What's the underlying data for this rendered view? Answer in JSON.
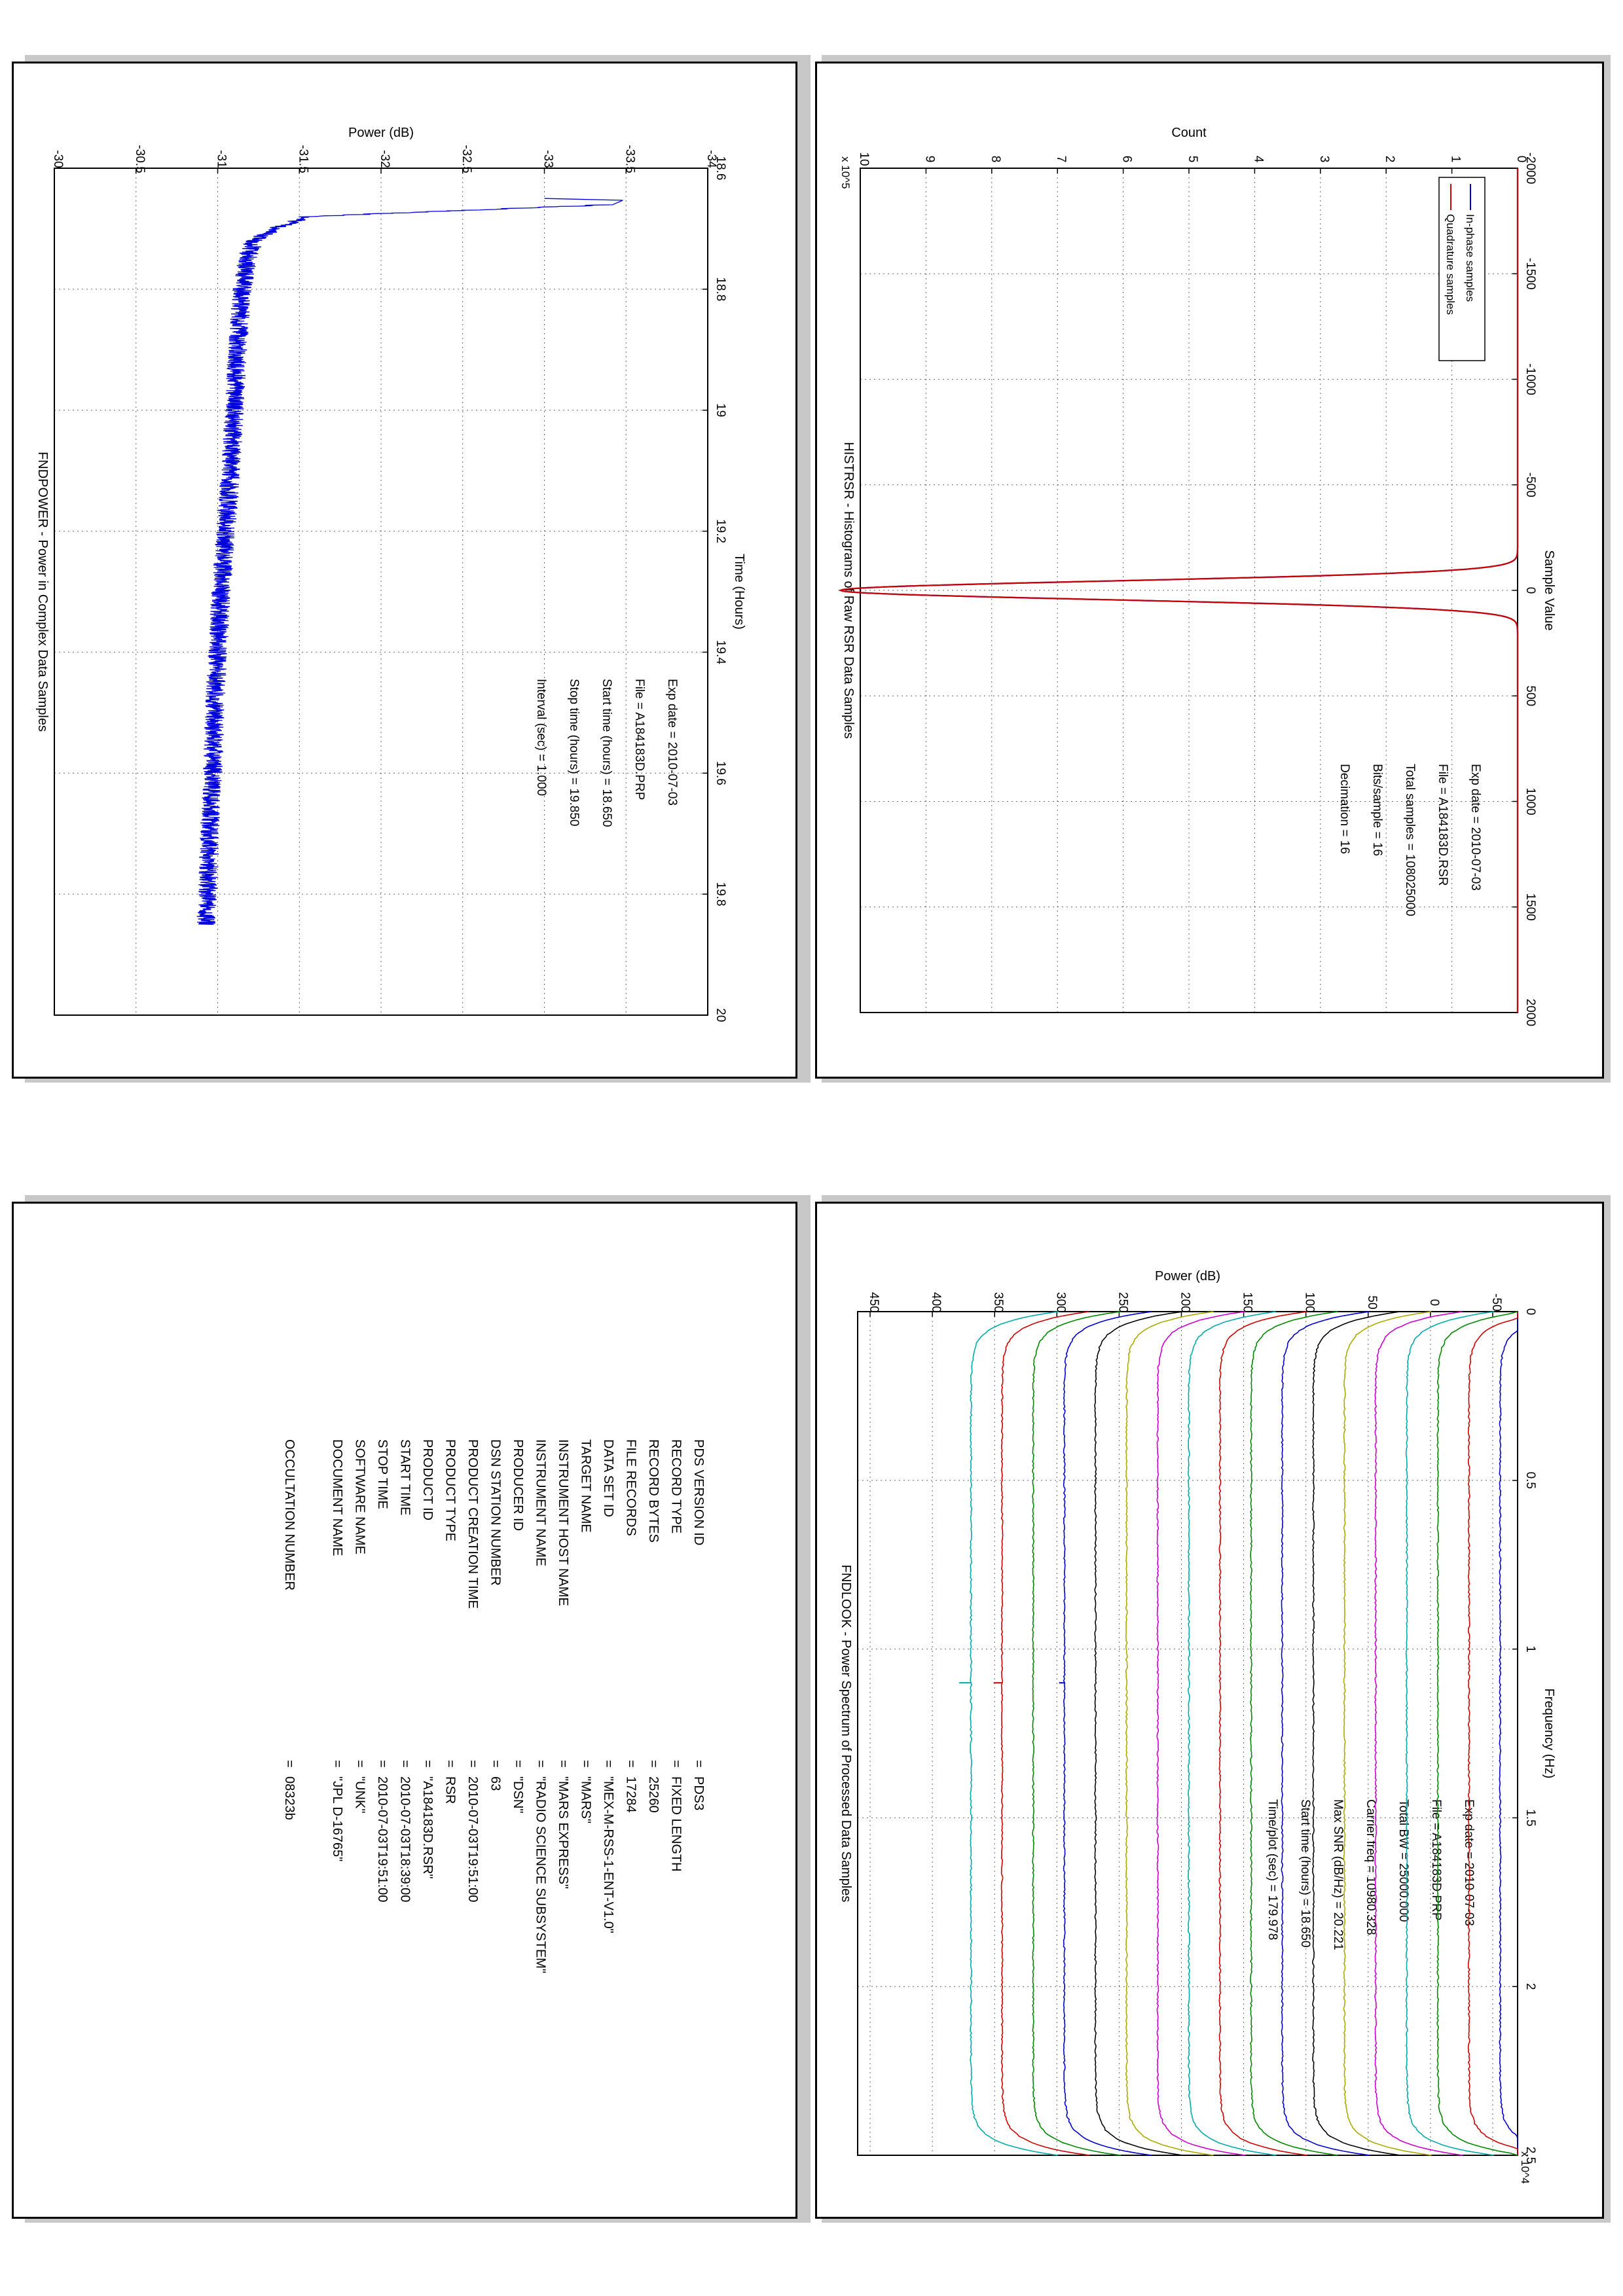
{
  "chart_data": [
    {
      "type": "line",
      "title": "HISTRSR - Histograms of Raw RSR Data Samples",
      "xlabel": "Sample Value",
      "ylabel": "Count",
      "y_exponent": "x 10^5",
      "xlim": [
        -2000,
        2000
      ],
      "ylim": [
        0,
        10
      ],
      "xticks": [
        "-2000",
        "-1500",
        "-1000",
        "-500",
        "0",
        "500",
        "1000",
        "1500",
        "2000"
      ],
      "yticks": [
        "0",
        "1",
        "2",
        "3",
        "4",
        "5",
        "6",
        "7",
        "8",
        "9",
        "10"
      ],
      "grid": true,
      "legend_position": "top-left",
      "series": [
        {
          "name": "In-phase samples",
          "color": "#0000cc",
          "shape": "gaussian",
          "center": 0,
          "peak": 10.3,
          "sigma": 17
        },
        {
          "name": "Quadrature samples",
          "color": "#cc0000",
          "shape": "gaussian",
          "center": 0,
          "peak": 10.3,
          "sigma": 17
        }
      ],
      "annotations": [
        "Exp date = 2010-07-03",
        "File = A184183D.RSR",
        "Total samples = 108025000",
        "Bits/sample  =      16",
        "Decimation   =      16"
      ]
    },
    {
      "type": "line",
      "title": "FNDPOWER - Power in Complex Data Samples",
      "xlabel": "Time (Hours)",
      "ylabel": "Power (dB)",
      "xlim": [
        18.6,
        20
      ],
      "ylim": [
        -34,
        -30
      ],
      "xticks": [
        "18.6",
        "18.8",
        "19",
        "19.2",
        "19.4",
        "19.6",
        "19.8",
        "20"
      ],
      "yticks": [
        "-34",
        "-33.5",
        "-33",
        "-32.5",
        "-32",
        "-31.5",
        "-31",
        "-30.5",
        "-30"
      ],
      "grid": true,
      "series": [
        {
          "name": "",
          "color": "#0000dd",
          "x": [
            18.65,
            18.653,
            18.66,
            18.68,
            18.7,
            18.72,
            18.75,
            18.8,
            18.9,
            19.0,
            19.1,
            19.2,
            19.3,
            19.4,
            19.5,
            19.6,
            19.7,
            19.8,
            19.85
          ],
          "y": [
            -33.0,
            -33.48,
            -33.42,
            -31.55,
            -31.35,
            -31.22,
            -31.18,
            -31.15,
            -31.12,
            -31.1,
            -31.08,
            -31.05,
            -31.02,
            -31.0,
            -30.98,
            -30.97,
            -30.95,
            -30.94,
            -30.93
          ],
          "noise": 0.06
        }
      ],
      "annotations": [
        "Exp date = 2010-07-03",
        "File = A184183D.PRP",
        "Start time (hours) = 18.650",
        "Stop time (hours) = 19.850",
        "Interval (sec) =    1.000"
      ]
    },
    {
      "type": "line",
      "title": "FNDLOOK - Power Spectrum of Processed Data Samples",
      "xlabel": "Frequency (Hz)",
      "ylabel": "Power (dB)",
      "x_exponent": "x 10^4",
      "xlim": [
        0,
        2.5
      ],
      "ylim": [
        -70,
        460
      ],
      "xticks": [
        "0",
        "0.5",
        "1",
        "1.5",
        "2",
        "2.5"
      ],
      "yticks": [
        "-50",
        "0",
        "50",
        "100",
        "150",
        "200",
        "250",
        "300",
        "350",
        "400",
        "450"
      ],
      "grid": true,
      "series_offsets": [
        -56,
        -31,
        -6,
        19,
        44,
        69,
        94,
        119,
        144,
        169,
        194,
        219,
        244,
        269,
        294,
        319,
        344,
        369
      ],
      "series_colors": [
        "#0000cc",
        "#cc0000",
        "#008800",
        "#00aaaa",
        "#cc00cc",
        "#aaaa00",
        "#000000",
        "#0000cc",
        "#008800",
        "#cc0000",
        "#00aaaa",
        "#cc00cc",
        "#aaaa00",
        "#000000",
        "#0000cc",
        "#008800",
        "#cc0000",
        "#00aaaa"
      ],
      "edge_drop": 70,
      "annotations": [
        "Exp date = 2010-07-03",
        "File = A184183D.PRP",
        "Total BW =      25000.000",
        "Carrier freq =   10980.328",
        "Max SNR (dB/Hz) =    20.221",
        "Start time (hours) =   18.650",
        "Time/plot (sec) =    179.978"
      ]
    }
  ],
  "label_table": {
    "rows": [
      {
        "key": "PDS VERSION ID",
        "value": "PDS3"
      },
      {
        "key": "RECORD TYPE",
        "value": "FIXED LENGTH"
      },
      {
        "key": "RECORD BYTES",
        "value": "25260"
      },
      {
        "key": "FILE RECORDS",
        "value": "17284"
      },
      {
        "key": "DATA SET ID",
        "value": "\"MEX-M-RSS-1-ENT-V1.0\""
      },
      {
        "key": "TARGET NAME",
        "value": "\"MARS\""
      },
      {
        "key": "INSTRUMENT HOST NAME",
        "value": "\"MARS EXPRESS\""
      },
      {
        "key": "INSTRUMENT NAME",
        "value": "\"RADIO SCIENCE SUBSYSTEM\""
      },
      {
        "key": "PRODUCER ID",
        "value": "\"DSN\""
      },
      {
        "key": "DSN STATION NUMBER",
        "value": "63"
      },
      {
        "key": "PRODUCT CREATION TIME",
        "value": "2010-07-03T19:51:00"
      },
      {
        "key": "PRODUCT TYPE",
        "value": "RSR"
      },
      {
        "key": "PRODUCT ID",
        "value": "\"A184183D.RSR\""
      },
      {
        "key": "START TIME",
        "value": "2010-07-03T18:39:00"
      },
      {
        "key": "STOP TIME",
        "value": "2010-07-03T19:51:00"
      },
      {
        "key": "SOFTWARE NAME",
        "value": "\"UNK\""
      },
      {
        "key": "DOCUMENT NAME",
        "value": "\"JPL D-16765\""
      }
    ],
    "occultation": {
      "key": "OCCULTATION NUMBER",
      "value": "08323b"
    },
    "separator": "="
  }
}
